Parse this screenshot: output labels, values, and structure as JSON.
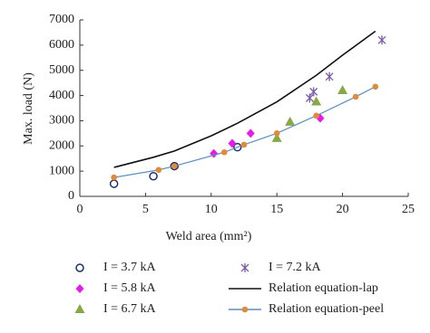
{
  "chart_data": {
    "type": "scatter",
    "x_label": "Weld area (mm²)",
    "y_label": "Max. load (N)",
    "xlim": [
      0,
      25
    ],
    "xticks": [
      0,
      5,
      10,
      15,
      20,
      25
    ],
    "ylim": [
      0,
      7000
    ],
    "yticks": [
      0,
      1000,
      2000,
      3000,
      4000,
      5000,
      6000,
      7000
    ],
    "series": [
      {
        "name": "I = 3.7 kA",
        "color": "#1f2f6b",
        "marker": "open-circle",
        "line": false,
        "x": [
          2.6,
          5.6,
          7.2,
          12
        ],
        "values": [
          500,
          800,
          1200,
          1950
        ]
      },
      {
        "name": "I = 5.8 kA",
        "color": "#e61ce6",
        "marker": "diamond",
        "line": false,
        "x": [
          10.2,
          11.6,
          13,
          18.3
        ],
        "values": [
          1700,
          2100,
          2500,
          3100
        ]
      },
      {
        "name": "I = 6.7 kA",
        "color": "#86a845",
        "marker": "triangle",
        "line": false,
        "x": [
          15,
          16,
          18,
          20
        ],
        "values": [
          2300,
          2950,
          3750,
          4200
        ]
      },
      {
        "name": "I = 7.2 kA",
        "color": "#7a5ca8",
        "marker": "cross",
        "line": false,
        "x": [
          17.5,
          17.8,
          19,
          23
        ],
        "values": [
          3900,
          4150,
          4750,
          6200
        ]
      },
      {
        "name": "Relation equation-lap",
        "color": "#111111",
        "marker": "none",
        "line": true,
        "x": [
          2.6,
          5.6,
          7.2,
          10,
          12,
          15,
          18,
          20,
          22.5
        ],
        "values": [
          1150,
          1550,
          1800,
          2400,
          2900,
          3750,
          4800,
          5600,
          6550
        ]
      },
      {
        "name": "Relation equation-peel",
        "color": "#e08a3c",
        "line_color": "#5b8fbf",
        "marker": "dot",
        "line": true,
        "x": [
          2.6,
          6,
          7.2,
          11,
          12.5,
          15,
          18,
          21,
          22.5
        ],
        "values": [
          750,
          1050,
          1200,
          1750,
          2050,
          2500,
          3200,
          3950,
          4350
        ]
      }
    ]
  }
}
